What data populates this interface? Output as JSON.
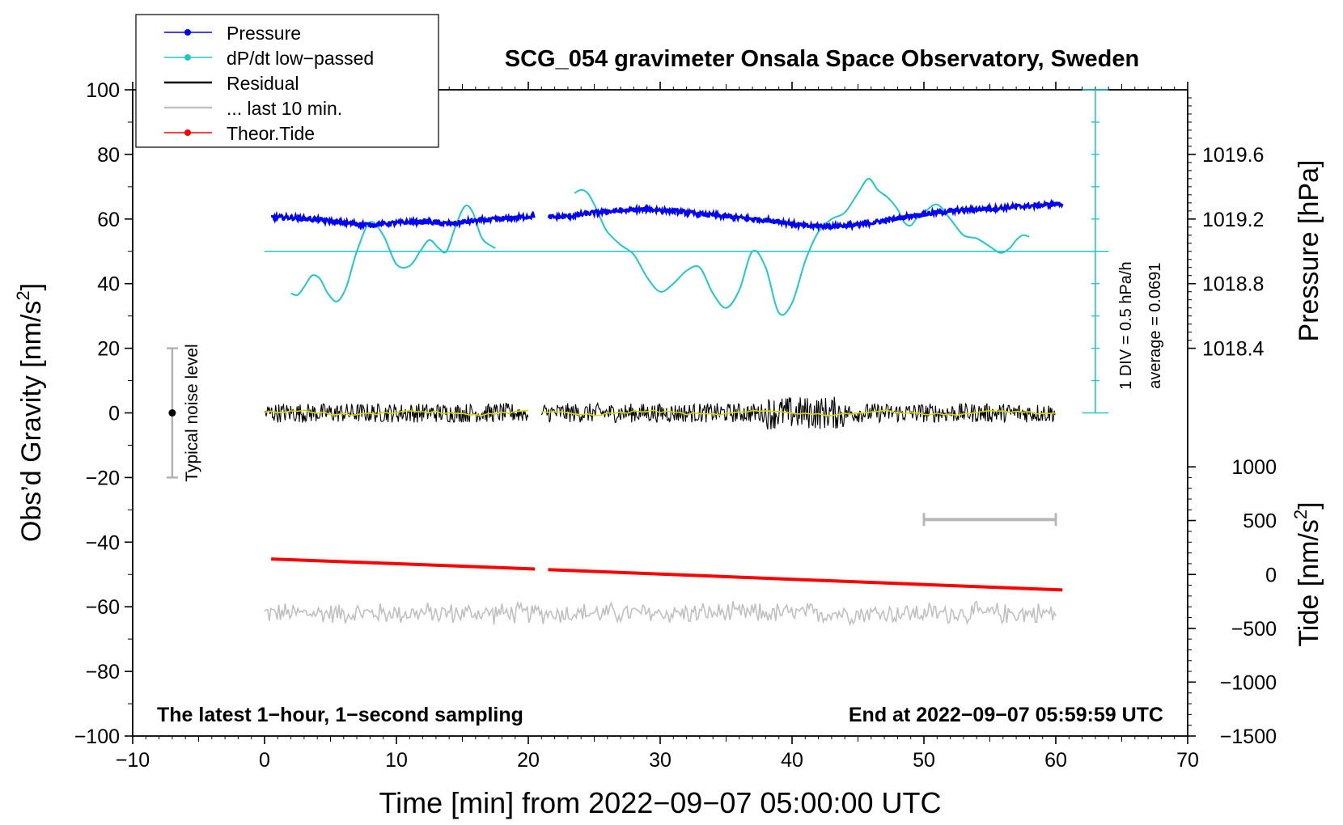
{
  "chart_data": {
    "type": "line",
    "title": "SCG_054 gravimeter Onsala Space Observatory, Sweden",
    "xlabel": "Time [min] from 2022−09−07 05:00:00 UTC",
    "ylabel_main": "Obs’d Gravity [nm/s",
    "ylabel_sup": "2",
    "ylabel_close": "]",
    "xlim": [
      -10,
      70
    ],
    "ylim": [
      -100,
      100
    ],
    "x_ticks": [
      {
        "v": -10,
        "label": "−10"
      },
      {
        "v": 0,
        "label": "0"
      },
      {
        "v": 10,
        "label": "10"
      },
      {
        "v": 20,
        "label": "20"
      },
      {
        "v": 30,
        "label": "30"
      },
      {
        "v": 40,
        "label": "40"
      },
      {
        "v": 50,
        "label": "50"
      },
      {
        "v": 60,
        "label": "60"
      },
      {
        "v": 70,
        "label": "70"
      }
    ],
    "y_ticks": [
      {
        "v": 100,
        "label": "100"
      },
      {
        "v": 80,
        "label": "80"
      },
      {
        "v": 60,
        "label": "60"
      },
      {
        "v": 40,
        "label": "40"
      },
      {
        "v": 20,
        "label": "20"
      },
      {
        "v": 0,
        "label": "0"
      },
      {
        "v": -20,
        "label": "−20"
      },
      {
        "v": -40,
        "label": "−40"
      },
      {
        "v": -60,
        "label": "−60"
      },
      {
        "v": -80,
        "label": "−80"
      },
      {
        "v": -100,
        "label": "−100"
      }
    ],
    "pressure_axis": {
      "label": "Pressure [hPa]",
      "ticks": [
        {
          "hpa": 1019.6,
          "gravity": 80,
          "label": "1019.6"
        },
        {
          "hpa": 1019.2,
          "gravity": 60,
          "label": "1019.2"
        },
        {
          "hpa": 1018.8,
          "gravity": 40,
          "label": "1018.8"
        },
        {
          "hpa": 1018.4,
          "gravity": 20,
          "label": "1018.4"
        }
      ]
    },
    "tide_axis": {
      "label_main": "Tide [nm/s",
      "label_sup": "2",
      "label_close": "]",
      "ticks": [
        {
          "tide": 1000,
          "gravity": -16.7,
          "label": "1000"
        },
        {
          "tide": 500,
          "gravity": -33.3,
          "label": "500"
        },
        {
          "tide": 0,
          "gravity": -50,
          "label": "0"
        },
        {
          "tide": -500,
          "gravity": -66.7,
          "label": "−500"
        },
        {
          "tide": -1000,
          "gravity": -83.3,
          "label": "−1000"
        },
        {
          "tide": -1500,
          "gravity": -100,
          "label": "−1500"
        }
      ]
    },
    "dpdt_scale": {
      "x": 63,
      "y_range": [
        0,
        100
      ],
      "label_div": "1 DIV = 0.5 hPa/h",
      "label_avg": "average = 0.0691",
      "baseline_y": 50
    },
    "noise_bar": {
      "x": -7,
      "y_range": [
        -20,
        20
      ],
      "center": 0,
      "label": "Typical noise level"
    },
    "last10_bar": {
      "x_range": [
        50,
        60
      ],
      "y": -33
    },
    "series": [
      {
        "name": "Pressure",
        "color": "#0000ff",
        "segments": [
          {
            "x": [
              0.5,
              2,
              4,
              6,
              8,
              10,
              12,
              14,
              16,
              18,
              20.5
            ],
            "y": [
              60.5,
              60.5,
              59.8,
              58.8,
              58.2,
              58.8,
              59.2,
              58.5,
              59.5,
              60,
              61
            ]
          },
          {
            "x": [
              21.5,
              23,
              25,
              27,
              29,
              31,
              33,
              35,
              37,
              39,
              41,
              43,
              45,
              47,
              49,
              51,
              53,
              55,
              57,
              59,
              60.5
            ],
            "y": [
              60.5,
              60.8,
              62,
              62.6,
              63,
              62.5,
              61.5,
              60.8,
              60,
              59.3,
              57.8,
              57.8,
              58.2,
              59.5,
              61,
              62,
              62.8,
              63.2,
              63.8,
              64.3,
              64.8
            ]
          }
        ]
      },
      {
        "name": "dP/dt low−passed",
        "color": "#20c8c8",
        "segments": [
          {
            "x": [
              2,
              2.5,
              3,
              3.6,
              4.2,
              4.8,
              5.5,
              6.2,
              7,
              8,
              9,
              10,
              11,
              11.8,
              12.5,
              13.2,
              13.8,
              14.5,
              15.2,
              15.8,
              16.5,
              17.5
            ],
            "y": [
              37,
              36.5,
              39,
              42.5,
              41.5,
              37,
              34.5,
              39,
              50,
              59,
              55,
              46,
              45.5,
              50,
              53.5,
              51,
              50,
              58,
              64,
              62,
              54,
              51
            ]
          },
          {
            "x": [
              23.5,
              24,
              24.5,
              25,
              25.5,
              26,
              27,
              28,
              29,
              30,
              31,
              32,
              33,
              34,
              35,
              36,
              37,
              38,
              39,
              40,
              41,
              42,
              43,
              44,
              45,
              45.8,
              46.5,
              47.3,
              48,
              48.5,
              49,
              49.5,
              50,
              51,
              52,
              53,
              54,
              55,
              55.8,
              56.5,
              57,
              57.5,
              58
            ],
            "y": [
              68,
              69,
              68,
              64.5,
              60,
              56,
              52,
              49,
              42,
              37.5,
              40,
              44,
              45,
              37,
              32.5,
              38,
              50,
              45,
              31,
              34,
              47,
              56,
              60,
              62,
              68,
              72.5,
              69,
              66.5,
              63,
              59,
              58,
              60.5,
              62,
              64.5,
              60,
              55,
              54,
              51.5,
              49.5,
              51,
              53.5,
              55,
              54.5
            ]
          }
        ]
      },
      {
        "name": "Residual",
        "color": "#000000",
        "segments": [
          {
            "x_range": [
              0,
              20
            ],
            "mean": 0,
            "amp": 3
          },
          {
            "x_range": [
              21,
              60
            ],
            "mean": 0,
            "amp": 3
          }
        ]
      },
      {
        "name": "... last 10 min.",
        "color": "#c0c0c0",
        "segments": [
          {
            "x_range": [
              0,
              60
            ],
            "mean": -62,
            "amp": 3
          }
        ]
      },
      {
        "name": "Theor.Tide",
        "color": "#ff0000",
        "segments": [
          {
            "x": [
              0.5,
              20.5
            ],
            "y": [
              -45.2,
              -48.3
            ]
          },
          {
            "x": [
              21.5,
              60.5
            ],
            "y": [
              -48.5,
              -54.8
            ]
          }
        ]
      }
    ],
    "annotations": {
      "bottom_left": "The latest 1−hour, 1−second sampling",
      "bottom_right": "End at 2022−09−07 05:59:59 UTC"
    },
    "legend": [
      {
        "label": "Pressure",
        "color": "#0000ff",
        "marker": true
      },
      {
        "label": "dP/dt low−passed",
        "color": "#20c8c8",
        "marker": true
      },
      {
        "label": "Residual",
        "color": "#000000",
        "marker": false
      },
      {
        "label": "... last 10 min.",
        "color": "#c0c0c0",
        "marker": false
      },
      {
        "label": "Theor.Tide",
        "color": "#ff0000",
        "marker": true
      }
    ]
  }
}
